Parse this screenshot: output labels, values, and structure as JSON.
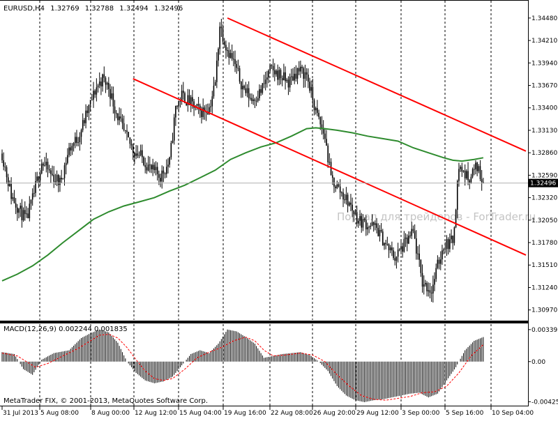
{
  "header": {
    "symbol": "EURUSD,H4",
    "open": "1.32769",
    "high": "1.32788",
    "low": "1.32494",
    "close": "1.32496"
  },
  "watermark": "Портал для трейдеров - ForTrader.ru",
  "copyright": "MetaTrader FIX, © 2001-2013, MetaQuotes Software Corp.",
  "macd_label": "MACD(12,26,9) 0.002244 0.001835",
  "colors": {
    "background": "#ffffff",
    "candle": "#000000",
    "trendline": "#ff0000",
    "moving_average": "#2e8b2e",
    "macd_signal": "#ff0000",
    "grid": "#000000",
    "price_tag_bg": "#000000",
    "price_tag_fg": "#ffffff"
  },
  "chart_data": [
    {
      "type": "candlestick",
      "title": "EURUSD,H4",
      "ylim": [
        1.3085,
        1.3468
      ],
      "yticks": [
        "1.34480",
        "1.34210",
        "1.33940",
        "1.33670",
        "1.33400",
        "1.33130",
        "1.32860",
        "1.32590",
        "1.32320",
        "1.32050",
        "1.31780",
        "1.31510",
        "1.31240",
        "1.30970"
      ],
      "current_price": "1.32496",
      "xticks": [
        "31 Jul 2013",
        "5 Aug 08:00",
        "8 Aug 00:00",
        "12 Aug 12:00",
        "15 Aug 04:00",
        "19 Aug 16:00",
        "22 Aug 08:00",
        "26 Aug 20:00",
        "29 Aug 12:00",
        "3 Sep 00:00",
        "5 Sep 16:00",
        "10 Sep 04:00"
      ],
      "grid": "vertical-dashed",
      "price_path": [
        [
          0,
          1.3285
        ],
        [
          6,
          1.3235
        ],
        [
          12,
          1.3215
        ],
        [
          16,
          1.3205
        ],
        [
          20,
          1.323
        ],
        [
          26,
          1.3275
        ],
        [
          32,
          1.326
        ],
        [
          38,
          1.325
        ],
        [
          44,
          1.329
        ],
        [
          50,
          1.3305
        ],
        [
          56,
          1.3335
        ],
        [
          62,
          1.3365
        ],
        [
          66,
          1.3375
        ],
        [
          70,
          1.3365
        ],
        [
          74,
          1.334
        ],
        [
          80,
          1.331
        ],
        [
          86,
          1.329
        ],
        [
          92,
          1.328
        ],
        [
          98,
          1.3265
        ],
        [
          104,
          1.3258
        ],
        [
          110,
          1.3275
        ],
        [
          114,
          1.334
        ],
        [
          118,
          1.3355
        ],
        [
          124,
          1.3345
        ],
        [
          130,
          1.3335
        ],
        [
          136,
          1.334
        ],
        [
          140,
          1.337
        ],
        [
          143,
          1.344
        ],
        [
          147,
          1.3415
        ],
        [
          152,
          1.3395
        ],
        [
          158,
          1.3365
        ],
        [
          164,
          1.335
        ],
        [
          170,
          1.336
        ],
        [
          176,
          1.3385
        ],
        [
          182,
          1.338
        ],
        [
          188,
          1.337
        ],
        [
          194,
          1.3385
        ],
        [
          200,
          1.338
        ],
        [
          206,
          1.3335
        ],
        [
          212,
          1.3305
        ],
        [
          216,
          1.3255
        ],
        [
          222,
          1.324
        ],
        [
          228,
          1.3225
        ],
        [
          234,
          1.3205
        ],
        [
          240,
          1.32
        ],
        [
          246,
          1.3195
        ],
        [
          252,
          1.3175
        ],
        [
          258,
          1.316
        ],
        [
          264,
          1.3175
        ],
        [
          270,
          1.319
        ],
        [
          276,
          1.313
        ],
        [
          282,
          1.312
        ],
        [
          286,
          1.315
        ],
        [
          290,
          1.3175
        ],
        [
          296,
          1.318
        ],
        [
          300,
          1.327
        ],
        [
          306,
          1.3255
        ],
        [
          312,
          1.327
        ],
        [
          316,
          1.325
        ]
      ],
      "moving_average": [
        [
          0,
          1.3132
        ],
        [
          10,
          1.314
        ],
        [
          20,
          1.315
        ],
        [
          30,
          1.3163
        ],
        [
          40,
          1.3178
        ],
        [
          50,
          1.3192
        ],
        [
          60,
          1.3206
        ],
        [
          70,
          1.3215
        ],
        [
          80,
          1.3222
        ],
        [
          90,
          1.3227
        ],
        [
          100,
          1.3232
        ],
        [
          110,
          1.324
        ],
        [
          120,
          1.3247
        ],
        [
          130,
          1.3256
        ],
        [
          140,
          1.3265
        ],
        [
          150,
          1.3278
        ],
        [
          160,
          1.3286
        ],
        [
          170,
          1.3293
        ],
        [
          180,
          1.3298
        ],
        [
          190,
          1.3306
        ],
        [
          200,
          1.3315
        ],
        [
          206,
          1.3316
        ],
        [
          212,
          1.3315
        ],
        [
          220,
          1.3313
        ],
        [
          230,
          1.331
        ],
        [
          240,
          1.3306
        ],
        [
          250,
          1.3303
        ],
        [
          260,
          1.33
        ],
        [
          270,
          1.3292
        ],
        [
          280,
          1.3286
        ],
        [
          290,
          1.328
        ],
        [
          296,
          1.3277
        ],
        [
          302,
          1.3276
        ],
        [
          310,
          1.3278
        ],
        [
          316,
          1.328
        ]
      ],
      "trendlines": [
        {
          "from": [
            86,
            1.3375
          ],
          "to": [
            344,
            1.3163
          ]
        },
        {
          "from": [
            148,
            1.3448
          ],
          "to": [
            344,
            1.3288
          ]
        }
      ]
    },
    {
      "type": "bar",
      "title": "MACD(12,26,9) 0.002244 0.001835",
      "ylim": [
        -0.0046,
        0.0039
      ],
      "yticks": [
        "0.003393",
        "0.00",
        "-0.004255"
      ],
      "histogram": [
        [
          0,
          0.001
        ],
        [
          8,
          0.0008
        ],
        [
          14,
          -0.0008
        ],
        [
          20,
          -0.0014
        ],
        [
          26,
          0.0002
        ],
        [
          34,
          0.0009
        ],
        [
          44,
          0.0012
        ],
        [
          52,
          0.0025
        ],
        [
          58,
          0.003
        ],
        [
          64,
          0.0034
        ],
        [
          70,
          0.0031
        ],
        [
          76,
          0.002
        ],
        [
          82,
          0.0
        ],
        [
          88,
          -0.0012
        ],
        [
          94,
          -0.002
        ],
        [
          100,
          -0.0023
        ],
        [
          106,
          -0.0021
        ],
        [
          112,
          -0.0016
        ],
        [
          118,
          -0.0004
        ],
        [
          124,
          0.0008
        ],
        [
          130,
          0.0012
        ],
        [
          136,
          0.0009
        ],
        [
          142,
          0.0019
        ],
        [
          148,
          0.0034
        ],
        [
          154,
          0.0032
        ],
        [
          160,
          0.0026
        ],
        [
          166,
          0.0019
        ],
        [
          172,
          0.0004
        ],
        [
          178,
          0.0006
        ],
        [
          184,
          0.0008
        ],
        [
          190,
          0.0009
        ],
        [
          196,
          0.001
        ],
        [
          202,
          0.0007
        ],
        [
          208,
          0.0
        ],
        [
          214,
          -0.001
        ],
        [
          220,
          -0.0026
        ],
        [
          226,
          -0.0036
        ],
        [
          232,
          -0.0041
        ],
        [
          238,
          -0.0043
        ],
        [
          244,
          -0.0041
        ],
        [
          250,
          -0.004
        ],
        [
          256,
          -0.0038
        ],
        [
          262,
          -0.0036
        ],
        [
          268,
          -0.0034
        ],
        [
          274,
          -0.0033
        ],
        [
          280,
          -0.0038
        ],
        [
          286,
          -0.0034
        ],
        [
          292,
          -0.002
        ],
        [
          298,
          -0.0006
        ],
        [
          304,
          0.0012
        ],
        [
          310,
          0.0022
        ],
        [
          316,
          0.0026
        ]
      ],
      "signal": [
        [
          0,
          0.0009
        ],
        [
          10,
          0.0006
        ],
        [
          16,
          0.0
        ],
        [
          22,
          -0.0006
        ],
        [
          30,
          -0.0002
        ],
        [
          40,
          0.0006
        ],
        [
          50,
          0.0014
        ],
        [
          58,
          0.0022
        ],
        [
          64,
          0.0028
        ],
        [
          70,
          0.0029
        ],
        [
          76,
          0.0025
        ],
        [
          82,
          0.0015
        ],
        [
          88,
          0.0002
        ],
        [
          94,
          -0.001
        ],
        [
          100,
          -0.0018
        ],
        [
          106,
          -0.002
        ],
        [
          112,
          -0.0018
        ],
        [
          120,
          -0.0008
        ],
        [
          128,
          0.0004
        ],
        [
          136,
          0.001
        ],
        [
          144,
          0.0015
        ],
        [
          152,
          0.0022
        ],
        [
          160,
          0.0026
        ],
        [
          166,
          0.0022
        ],
        [
          172,
          0.0012
        ],
        [
          178,
          0.0006
        ],
        [
          186,
          0.0007
        ],
        [
          196,
          0.0009
        ],
        [
          204,
          0.0007
        ],
        [
          212,
          0.0
        ],
        [
          220,
          -0.0014
        ],
        [
          228,
          -0.0026
        ],
        [
          236,
          -0.0036
        ],
        [
          244,
          -0.004
        ],
        [
          252,
          -0.0041
        ],
        [
          260,
          -0.0039
        ],
        [
          268,
          -0.0037
        ],
        [
          276,
          -0.0033
        ],
        [
          284,
          -0.0032
        ],
        [
          292,
          -0.0026
        ],
        [
          300,
          -0.0012
        ],
        [
          308,
          0.0006
        ],
        [
          316,
          0.0018
        ]
      ]
    }
  ]
}
